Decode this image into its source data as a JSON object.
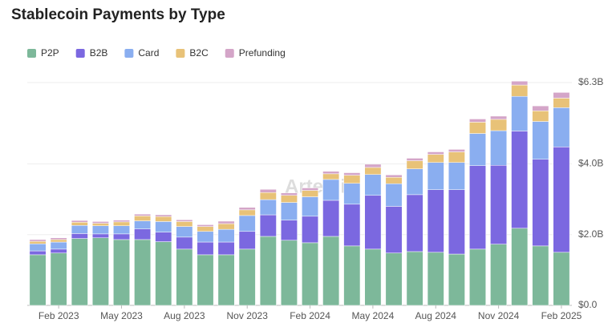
{
  "chart_data": {
    "type": "stacked_bar",
    "title": "Stablecoin Payments by Type",
    "watermark": "Artemis",
    "categories": [
      null,
      "Feb 2023",
      null,
      null,
      "May 2023",
      null,
      null,
      "Aug 2023",
      null,
      null,
      "Nov 2023",
      null,
      null,
      "Feb 2024",
      null,
      null,
      "May 2024",
      null,
      null,
      "Aug 2024",
      null,
      null,
      "Nov 2024",
      null,
      null,
      "Feb 2025"
    ],
    "series": [
      {
        "name": "P2P",
        "color": "#7db89a",
        "values": [
          1.43,
          1.48,
          1.89,
          1.91,
          1.86,
          1.86,
          1.8,
          1.59,
          1.43,
          1.43,
          1.59,
          1.95,
          1.84,
          1.77,
          1.95,
          1.68,
          1.59,
          1.48,
          1.52,
          1.5,
          1.45,
          1.59,
          1.73,
          2.18,
          1.68,
          1.5
        ]
      },
      {
        "name": "B2B",
        "color": "#7b68e0",
        "values": [
          0.11,
          0.11,
          0.14,
          0.11,
          0.16,
          0.3,
          0.27,
          0.34,
          0.36,
          0.36,
          0.5,
          0.61,
          0.57,
          0.75,
          1.02,
          1.18,
          1.52,
          1.32,
          1.61,
          1.77,
          1.82,
          2.36,
          2.23,
          2.75,
          2.45,
          2.98
        ]
      },
      {
        "name": "Card",
        "color": "#8aaef0",
        "values": [
          0.2,
          0.2,
          0.23,
          0.23,
          0.23,
          0.23,
          0.3,
          0.3,
          0.3,
          0.36,
          0.45,
          0.43,
          0.5,
          0.55,
          0.59,
          0.59,
          0.59,
          0.64,
          0.73,
          0.77,
          0.77,
          0.91,
          0.98,
          0.98,
          1.07,
          1.11
        ]
      },
      {
        "name": "B2C",
        "color": "#e8c278",
        "values": [
          0.07,
          0.07,
          0.09,
          0.07,
          0.11,
          0.14,
          0.14,
          0.14,
          0.14,
          0.16,
          0.16,
          0.2,
          0.2,
          0.18,
          0.16,
          0.23,
          0.2,
          0.18,
          0.23,
          0.23,
          0.3,
          0.32,
          0.32,
          0.32,
          0.3,
          0.27
        ]
      },
      {
        "name": "Prefunding",
        "color": "#d4a5c8",
        "values": [
          0.05,
          0.05,
          0.05,
          0.05,
          0.05,
          0.05,
          0.05,
          0.05,
          0.05,
          0.07,
          0.07,
          0.09,
          0.07,
          0.07,
          0.07,
          0.07,
          0.09,
          0.07,
          0.07,
          0.07,
          0.07,
          0.09,
          0.09,
          0.11,
          0.14,
          0.16
        ]
      }
    ],
    "ylim": [
      0,
      6.3
    ],
    "yticks": [
      {
        "value": 0,
        "label": "$0.0"
      },
      {
        "value": 2,
        "label": "$2.0B"
      },
      {
        "value": 4,
        "label": "$4.0B"
      },
      {
        "value": 6.3,
        "label": "$6.3B"
      }
    ],
    "grid": true
  }
}
